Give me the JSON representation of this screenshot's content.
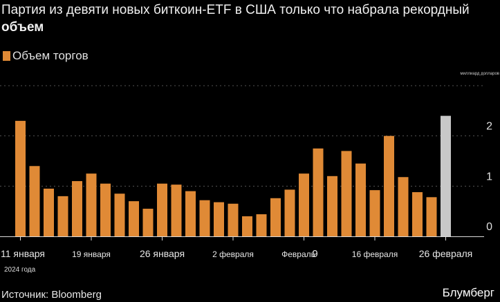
{
  "title": {
    "line1": "Партия из девяти новых биткоин-ETF в США только что набрала рекордный",
    "line2": "объем"
  },
  "legend": {
    "label": "Объем торгов",
    "color": "#e08a36"
  },
  "source": "Источник: Bloomberg",
  "brand": "Блумберг",
  "colors": {
    "bar": "#e08a36",
    "highlight": "#c8c8c8",
    "grid": "#555555",
    "axis": "#dddddd"
  },
  "chart_data": {
    "type": "bar",
    "title": "Партия из девяти новых биткоин-ETF в США только что набрала рекордный объем",
    "unit_label": "миллиард долларов",
    "ylim": [
      0,
      3
    ],
    "yticks": [
      0,
      1,
      2
    ],
    "ytick_labels": [
      "0",
      "1",
      "2"
    ],
    "grid": true,
    "x_tick_positions": [
      0,
      5,
      10,
      15,
      20,
      25,
      30
    ],
    "x_tick_labels": [
      "11 января",
      "19 января",
      "26 января",
      "2 февраля",
      "Февраль",
      "16 февраля",
      "26 февраля"
    ],
    "x_tick_extra": {
      "4": "9"
    },
    "x_sublabel": "2024 года",
    "series": [
      {
        "name": "Объем торгов",
        "values": [
          2.3,
          1.4,
          0.95,
          0.8,
          1.1,
          1.25,
          1.05,
          0.85,
          0.7,
          0.55,
          1.05,
          1.03,
          0.9,
          0.72,
          0.68,
          0.65,
          0.4,
          0.44,
          0.76,
          0.93,
          1.25,
          1.75,
          1.2,
          1.7,
          1.45,
          0.92,
          2.0,
          1.18,
          0.88,
          0.78,
          2.4
        ],
        "highlight_index": 30
      }
    ]
  }
}
